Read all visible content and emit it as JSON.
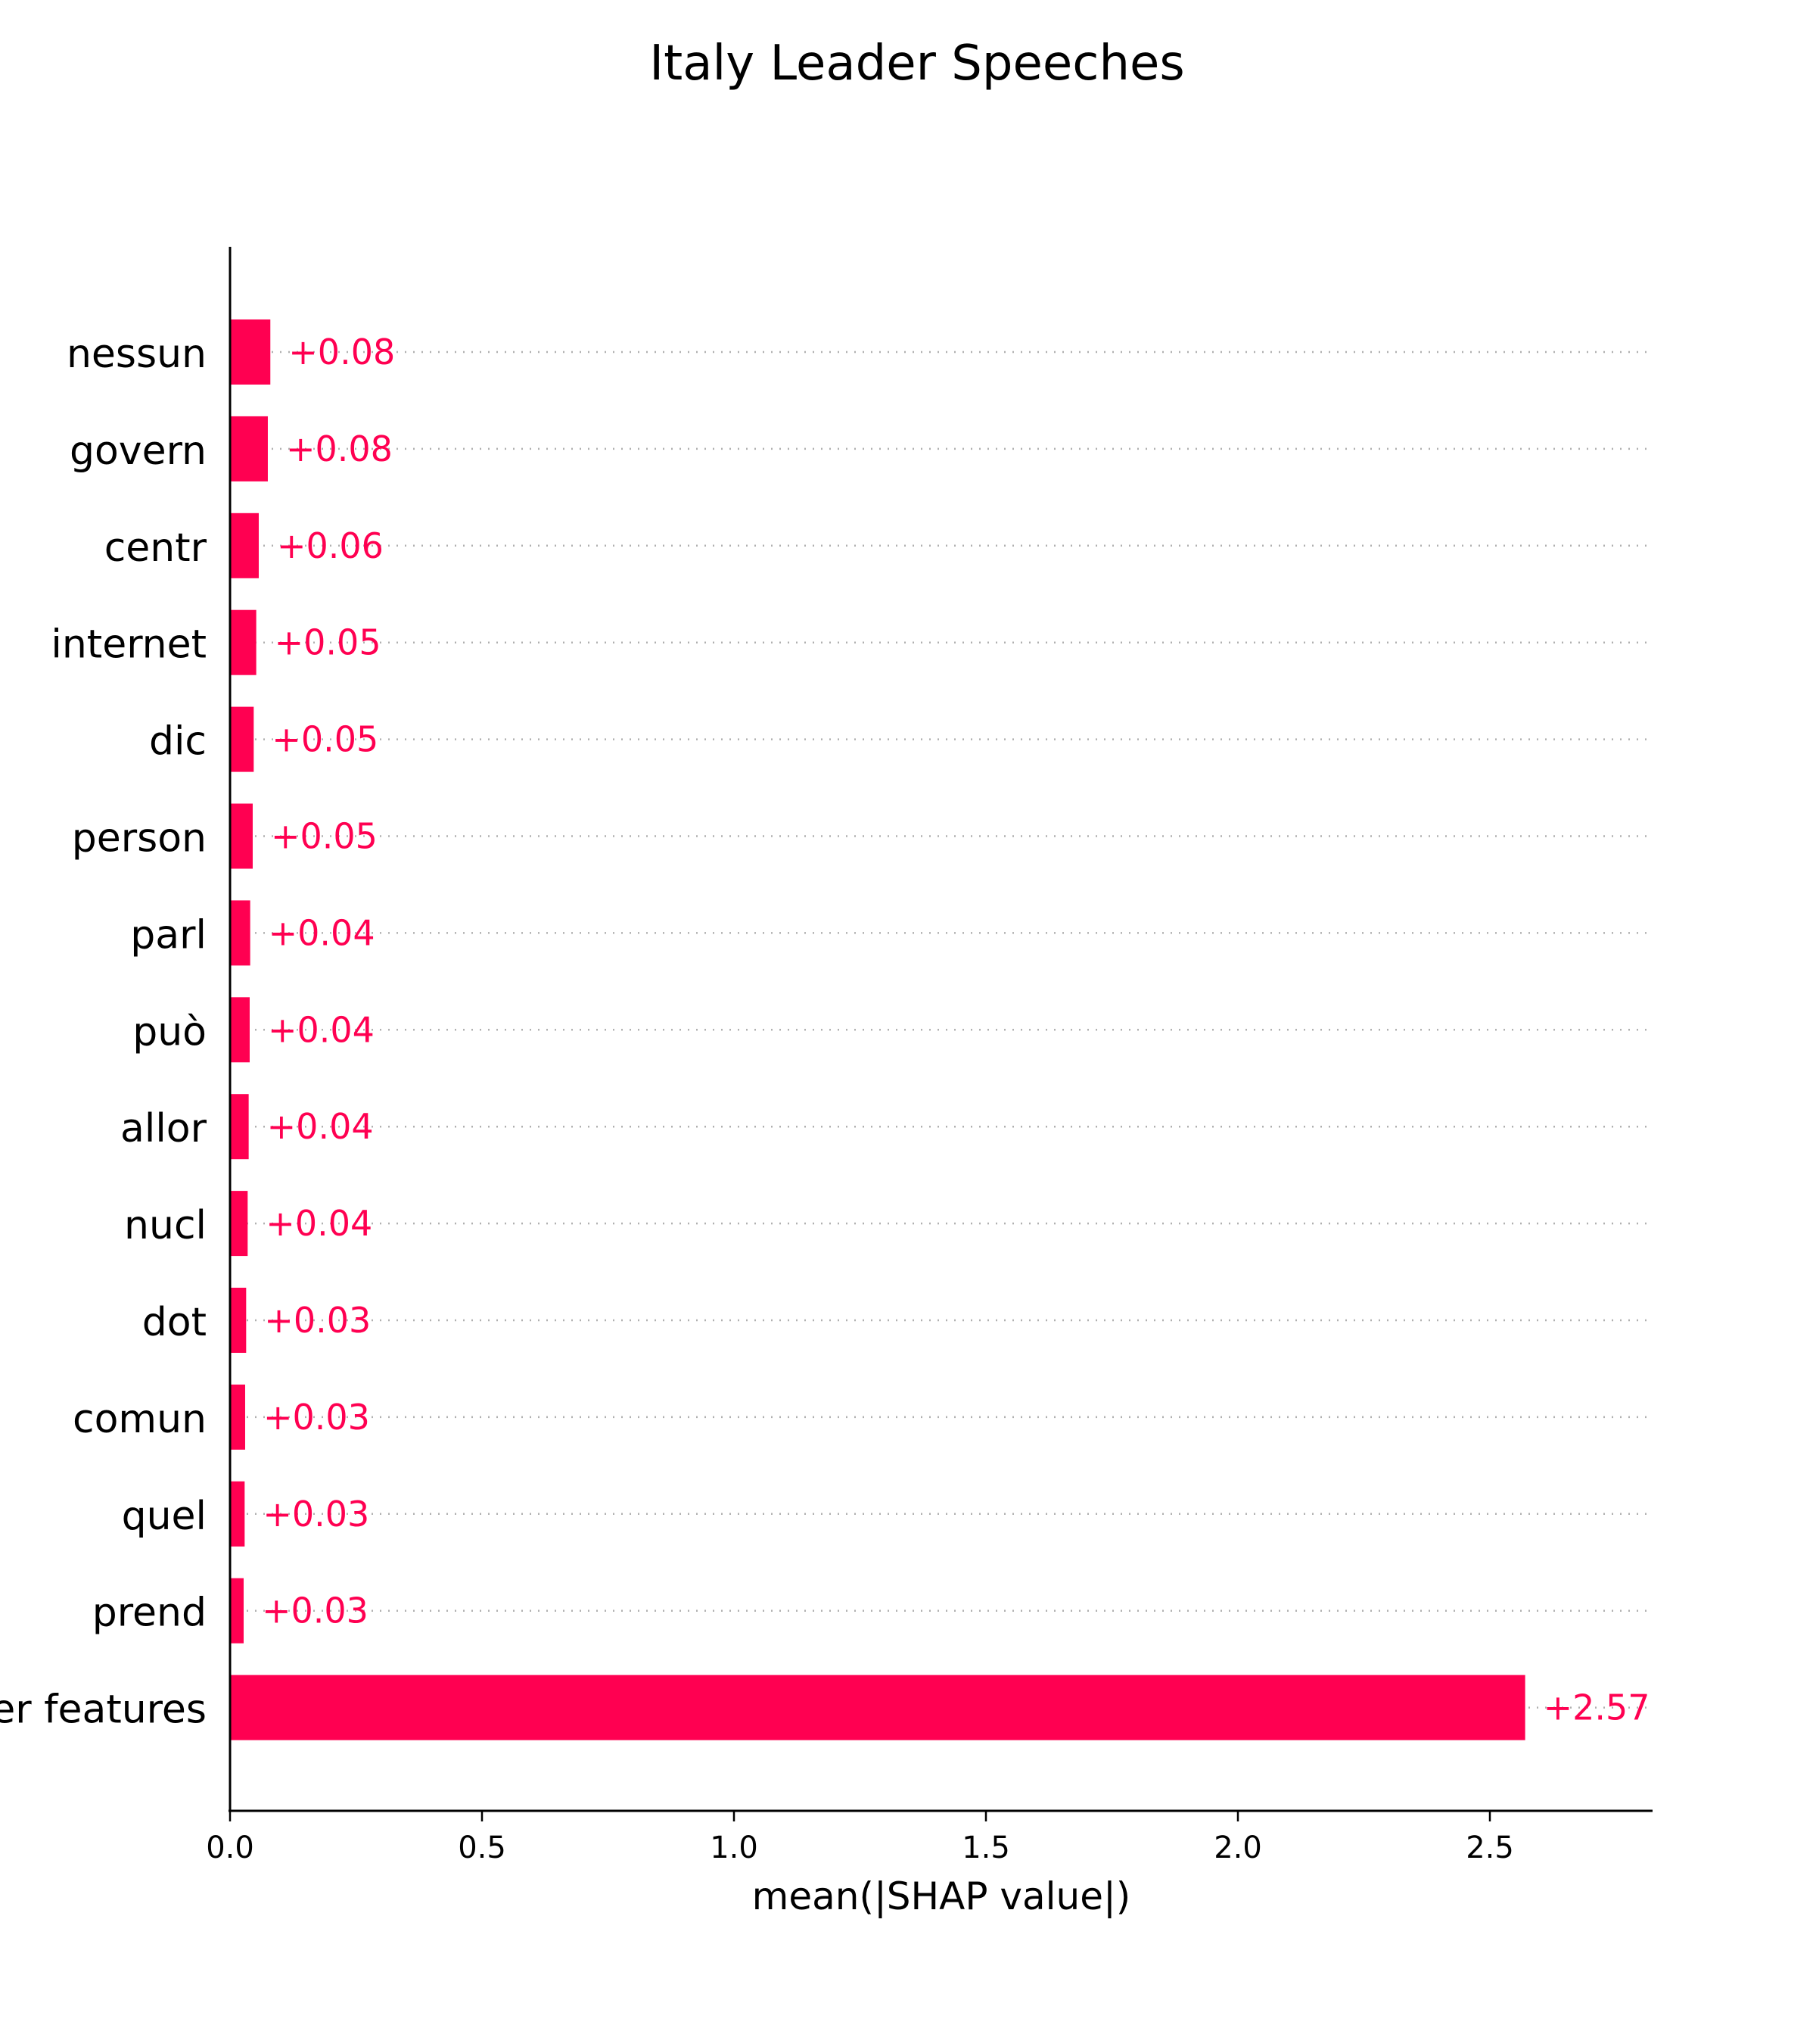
{
  "chart_data": {
    "type": "bar",
    "orientation": "horizontal",
    "title": "Italy Leader Speeches",
    "xlabel": "mean(|SHAP value|)",
    "ylabel": "",
    "xlim": [
      0,
      2.83
    ],
    "xticks": [
      0.0,
      0.5,
      1.0,
      1.5,
      2.0,
      2.5
    ],
    "xtick_labels": [
      "0.0",
      "0.5",
      "1.0",
      "1.5",
      "2.0",
      "2.5"
    ],
    "grid": "dotted horizontal guide lines per bar",
    "bar_color": "#ff0051",
    "categories": [
      "nessun",
      "govern",
      "centr",
      "internet",
      "dic",
      "person",
      "parl",
      "può",
      "allor",
      "nucl",
      "dot",
      "comun",
      "quel",
      "prend",
      "er features"
    ],
    "values": [
      0.08,
      0.075,
      0.057,
      0.052,
      0.047,
      0.045,
      0.04,
      0.039,
      0.037,
      0.035,
      0.032,
      0.03,
      0.029,
      0.027,
      2.57
    ],
    "value_labels": [
      "+0.08",
      "+0.08",
      "+0.06",
      "+0.05",
      "+0.05",
      "+0.05",
      "+0.04",
      "+0.04",
      "+0.04",
      "+0.04",
      "+0.03",
      "+0.03",
      "+0.03",
      "+0.03",
      "+2.57"
    ]
  }
}
